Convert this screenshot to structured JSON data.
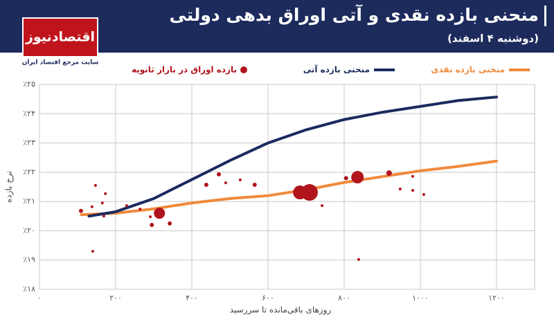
{
  "logo": {
    "name": "اقتصادنیوز",
    "tagline": "سایت مرجع اقتصاد ایران"
  },
  "chart_data": {
    "type": "line",
    "title": "منحنی بازده نقدی و آتی اوراق بدهی دولتی",
    "subtitle": "(دوشنبه ۴ اسفند)",
    "x_label": "روزهای باقی‌مانده تا سررسید",
    "y_label": "نرخ بازده",
    "xlim": [
      0,
      1300
    ],
    "ylim": [
      18,
      25
    ],
    "xticks": [
      {
        "value": 0,
        "label": "۰"
      },
      {
        "value": 200,
        "label": "۲۰۰"
      },
      {
        "value": 400,
        "label": "۴۰۰"
      },
      {
        "value": 600,
        "label": "۶۰۰"
      },
      {
        "value": 800,
        "label": "۸۰۰"
      },
      {
        "value": 1000,
        "label": "۱۰۰۰"
      },
      {
        "value": 1200,
        "label": "۱۲۰۰"
      }
    ],
    "yticks": [
      {
        "value": 18,
        "label": "٪۱۸"
      },
      {
        "value": 19,
        "label": "٪۱۹"
      },
      {
        "value": 20,
        "label": "٪۲۰"
      },
      {
        "value": 21,
        "label": "٪۲۱"
      },
      {
        "value": 22,
        "label": "٪۲۲"
      },
      {
        "value": 23,
        "label": "٪۲۳"
      },
      {
        "value": 24,
        "label": "٪۲۴"
      },
      {
        "value": 25,
        "label": "٪۲۵"
      }
    ],
    "grid": true,
    "series": [
      {
        "name": "منحنی بازده نقدی",
        "color": "#f08a3c",
        "type": "line",
        "x": [
          110,
          200,
          300,
          400,
          500,
          600,
          700,
          800,
          900,
          1000,
          1100,
          1200
        ],
        "values": [
          20.55,
          20.6,
          20.75,
          20.95,
          21.1,
          21.2,
          21.4,
          21.65,
          21.85,
          22.05,
          22.2,
          22.38
        ]
      },
      {
        "name": "منحنی بازده آتی",
        "color": "#1b2a5e",
        "type": "line",
        "x": [
          130,
          200,
          300,
          400,
          500,
          600,
          700,
          800,
          900,
          1000,
          1100,
          1200
        ],
        "values": [
          20.5,
          20.65,
          21.1,
          21.75,
          22.4,
          23.0,
          23.45,
          23.8,
          24.05,
          24.25,
          24.45,
          24.57
        ]
      },
      {
        "name": "بازده اوراق در بازار ثانویه",
        "color": "#b0141c",
        "type": "scatter",
        "x": [
          109,
          138,
          147,
          140,
          165,
          173,
          169,
          229,
          264,
          291,
          295,
          315,
          342,
          438,
          471,
          489,
          527,
          565,
          684,
          709,
          742,
          805,
          835,
          838,
          918,
          947,
          980,
          980,
          1009
        ],
        "values": [
          20.68,
          20.82,
          21.55,
          19.3,
          20.95,
          21.27,
          20.5,
          20.86,
          20.74,
          20.48,
          20.2,
          20.6,
          20.25,
          21.57,
          21.93,
          21.64,
          21.74,
          21.57,
          21.31,
          21.31,
          20.86,
          21.8,
          21.83,
          19.02,
          21.97,
          21.43,
          21.86,
          21.38,
          21.24
        ],
        "sizes": [
          3,
          2,
          2,
          2,
          2,
          2,
          2,
          2,
          2,
          2,
          3,
          8,
          3,
          3,
          3,
          2,
          2,
          3,
          10,
          12,
          2,
          3,
          9,
          2,
          4,
          2,
          2,
          2,
          2
        ]
      }
    ]
  }
}
